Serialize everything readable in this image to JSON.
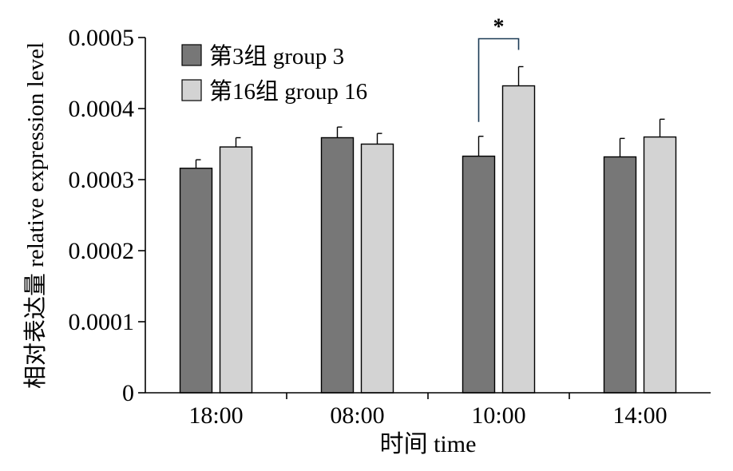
{
  "chart_data": {
    "type": "bar",
    "categories": [
      "18:00",
      "08:00",
      "10:00",
      "14:00"
    ],
    "series": [
      {
        "name": "第3组 group 3",
        "values": [
          0.000316,
          0.000359,
          0.000333,
          0.000332
        ],
        "errors": [
          1.2e-05,
          1.5e-05,
          2.8e-05,
          2.6e-05
        ],
        "color": "#777777"
      },
      {
        "name": "第16组 group 16",
        "values": [
          0.000346,
          0.00035,
          0.000432,
          0.00036
        ],
        "errors": [
          1.3e-05,
          1.5e-05,
          2.7e-05,
          2.5e-05
        ],
        "color": "#d3d3d3"
      }
    ],
    "xlabel": "时间 time",
    "ylabel": "相对表达量 relative expression level",
    "ylim": [
      0,
      0.0005
    ],
    "yticks": [
      "0",
      "0.0001",
      "0.0002",
      "0.0003",
      "0.0004",
      "0.0005"
    ],
    "grid": false,
    "legend_position": "top-left",
    "annotations": [
      {
        "category_index": 2,
        "text": "*"
      }
    ]
  }
}
